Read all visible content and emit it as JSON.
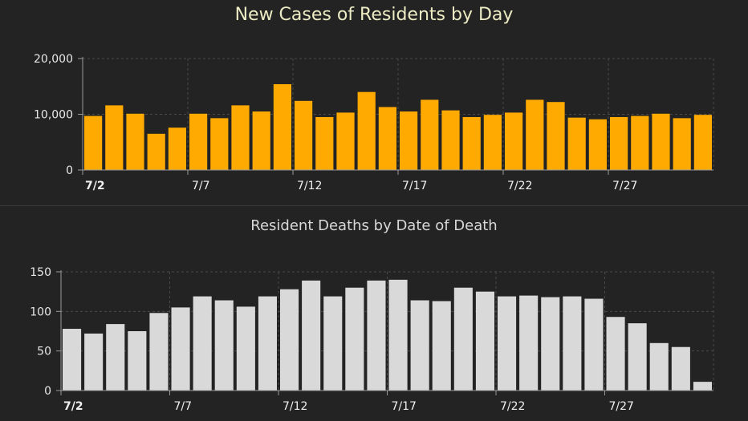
{
  "chart_data": [
    {
      "type": "bar",
      "title": "New Cases of Residents by Day",
      "xlabel": "",
      "ylabel": "",
      "ylim": [
        0,
        20000
      ],
      "yticks": [
        0,
        10000,
        20000
      ],
      "ytick_labels": [
        "0",
        "10,000",
        "20,000"
      ],
      "grid": true,
      "color": "#ffaa00",
      "categories": [
        "7/2",
        "7/3",
        "7/4",
        "7/5",
        "7/6",
        "7/7",
        "7/8",
        "7/9",
        "7/10",
        "7/11",
        "7/12",
        "7/13",
        "7/14",
        "7/15",
        "7/16",
        "7/17",
        "7/18",
        "7/19",
        "7/20",
        "7/21",
        "7/22",
        "7/23",
        "7/24",
        "7/25",
        "7/26",
        "7/27",
        "7/28",
        "7/29",
        "7/30",
        "7/31"
      ],
      "xtick_labels": [
        "7/2",
        "7/7",
        "7/12",
        "7/17",
        "7/22",
        "7/27"
      ],
      "values": [
        9700,
        11600,
        10100,
        6500,
        7600,
        10100,
        9300,
        11600,
        10500,
        15400,
        12400,
        9500,
        10300,
        14000,
        11300,
        10500,
        12600,
        10700,
        9500,
        9900,
        10300,
        12600,
        12200,
        9400,
        9100,
        9500,
        9700,
        10100,
        9300,
        9900
      ]
    },
    {
      "type": "bar",
      "title": "Resident Deaths by Date of Death",
      "xlabel": "",
      "ylabel": "",
      "ylim": [
        0,
        150
      ],
      "yticks": [
        0,
        50,
        100,
        150
      ],
      "ytick_labels": [
        "0",
        "50",
        "100",
        "150"
      ],
      "grid": true,
      "color": "#d9d9d9",
      "categories": [
        "7/2",
        "7/3",
        "7/4",
        "7/5",
        "7/6",
        "7/7",
        "7/8",
        "7/9",
        "7/10",
        "7/11",
        "7/12",
        "7/13",
        "7/14",
        "7/15",
        "7/16",
        "7/17",
        "7/18",
        "7/19",
        "7/20",
        "7/21",
        "7/22",
        "7/23",
        "7/24",
        "7/25",
        "7/26",
        "7/27",
        "7/28",
        "7/29",
        "7/30",
        "7/31"
      ],
      "xtick_labels": [
        "7/2",
        "7/7",
        "7/12",
        "7/17",
        "7/22",
        "7/27"
      ],
      "values": [
        78,
        72,
        84,
        75,
        98,
        105,
        119,
        114,
        106,
        119,
        128,
        139,
        119,
        130,
        139,
        140,
        114,
        113,
        130,
        125,
        119,
        120,
        118,
        119,
        116,
        93,
        85,
        60,
        55,
        11
      ]
    }
  ]
}
